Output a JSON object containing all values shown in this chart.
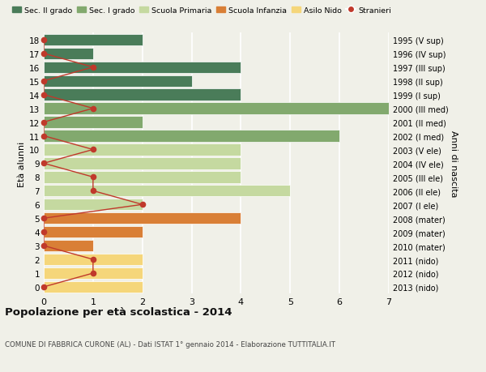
{
  "ages": [
    18,
    17,
    16,
    15,
    14,
    13,
    12,
    11,
    10,
    9,
    8,
    7,
    6,
    5,
    4,
    3,
    2,
    1,
    0
  ],
  "right_labels": [
    "1995 (V sup)",
    "1996 (IV sup)",
    "1997 (III sup)",
    "1998 (II sup)",
    "1999 (I sup)",
    "2000 (III med)",
    "2001 (II med)",
    "2002 (I med)",
    "2003 (V ele)",
    "2004 (IV ele)",
    "2005 (III ele)",
    "2006 (II ele)",
    "2007 (I ele)",
    "2008 (mater)",
    "2009 (mater)",
    "2010 (mater)",
    "2011 (nido)",
    "2012 (nido)",
    "2013 (nido)"
  ],
  "bar_values": [
    2,
    1,
    4,
    3,
    4,
    7,
    2,
    6,
    4,
    4,
    4,
    5,
    2,
    4,
    2,
    1,
    2,
    2,
    2
  ],
  "stranieri": [
    0,
    0,
    1,
    0,
    0,
    1,
    0,
    0,
    1,
    0,
    1,
    1,
    2,
    0,
    0,
    0,
    1,
    1,
    0
  ],
  "color_sec2": "#4a7c59",
  "color_sec1": "#82a96e",
  "color_primaria": "#c5d9a0",
  "color_infanzia": "#d97f36",
  "color_nido": "#f5d67a",
  "color_stranieri": "#c0392b",
  "sec2_ages": [
    18,
    17,
    16,
    15,
    14
  ],
  "sec1_ages": [
    13,
    12,
    11
  ],
  "primaria_ages": [
    10,
    9,
    8,
    7,
    6
  ],
  "infanzia_ages": [
    5,
    4,
    3
  ],
  "nido_ages": [
    2,
    1,
    0
  ],
  "xlim": [
    0,
    7
  ],
  "title": "Popolazione per età scolastica - 2014",
  "subtitle": "COMUNE DI FABBRICA CURONE (AL) - Dati ISTAT 1° gennaio 2014 - Elaborazione TUTTITALIA.IT",
  "ylabel": "Età alunni",
  "right_ylabel": "Anni di nascita",
  "legend_labels": [
    "Sec. II grado",
    "Sec. I grado",
    "Scuola Primaria",
    "Scuola Infanzia",
    "Asilo Nido",
    "Stranieri"
  ],
  "bg_color": "#f0f0e8",
  "bar_height": 0.85
}
